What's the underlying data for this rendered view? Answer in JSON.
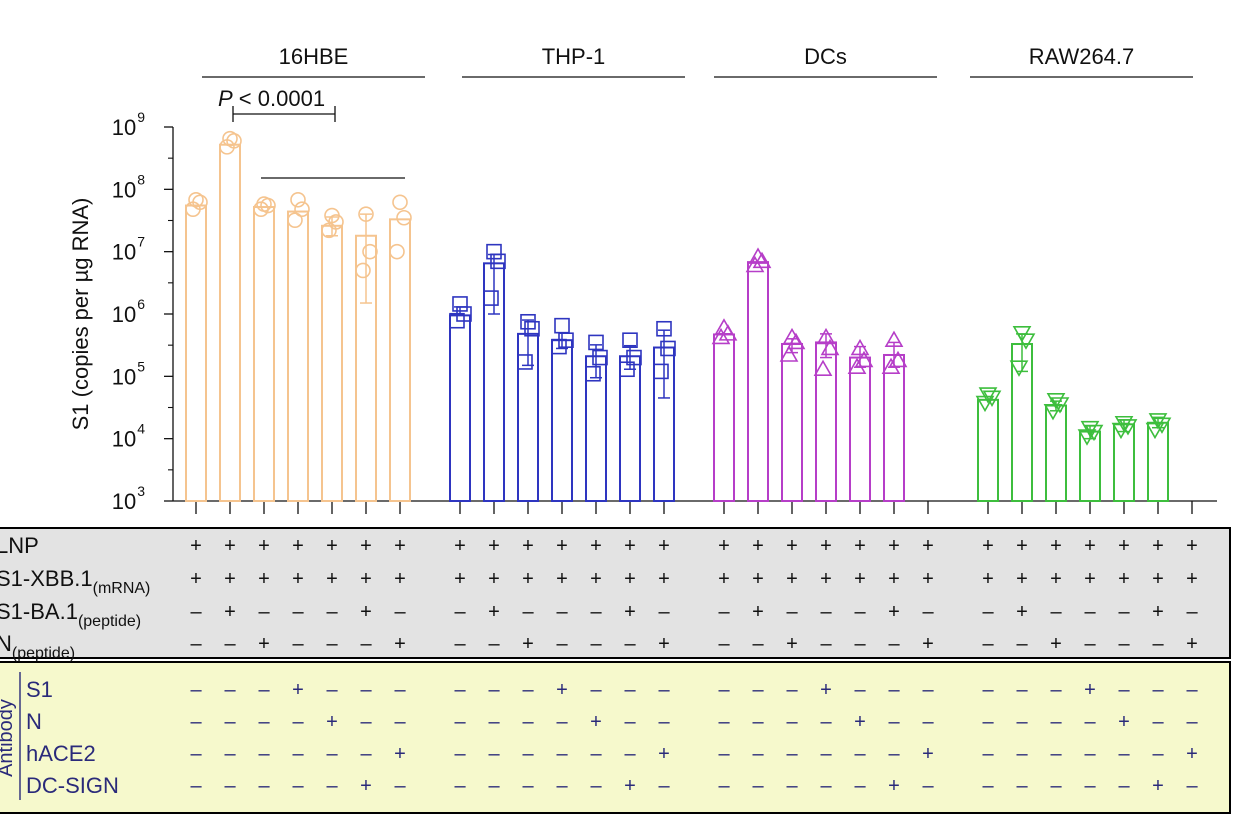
{
  "chart_data": {
    "type": "bar",
    "y_scale": "log10",
    "ylim": [
      1000,
      1000000000
    ],
    "ylabel": "S1 (copies per µg RNA)",
    "y_tick_exponents": [
      "3",
      "4",
      "5",
      "6",
      "7",
      "8",
      "9"
    ],
    "y_tick_base": "10",
    "significance": {
      "p_label": "P",
      "p_text": " < 0.0001",
      "group": "16HBE",
      "from_bar": 1,
      "to_bar": 4,
      "bracket_bars": [
        3,
        7
      ]
    },
    "groups": [
      {
        "name": "16HBE",
        "color": "#f5c48f",
        "marker": "circle",
        "values": [
          55000000,
          520000000,
          52000000,
          44000000,
          26000000,
          18000000,
          33000000
        ],
        "err_low": [
          null,
          null,
          null,
          null,
          18000000,
          1500000,
          null
        ],
        "err_high": [
          null,
          null,
          null,
          null,
          36000000,
          40000000,
          null
        ],
        "points": [
          [
            48000000,
            62000000,
            68000000
          ],
          [
            480000000,
            600000000,
            650000000
          ],
          [
            48000000,
            55000000,
            58000000
          ],
          [
            32000000,
            48000000,
            68000000
          ],
          [
            22000000,
            30000000,
            38000000
          ],
          [
            5000000,
            10000000,
            40000000
          ],
          [
            10000000,
            35000000,
            62000000
          ]
        ]
      },
      {
        "name": "THP-1",
        "color": "#2e35c0",
        "marker": "square",
        "values": [
          950000,
          6500000,
          480000,
          380000,
          210000,
          210000,
          290000
        ],
        "err_low": [
          null,
          1000000,
          150000,
          280000,
          95000,
          130000,
          45000
        ],
        "err_high": [
          1300000,
          9000000,
          800000,
          500000,
          320000,
          310000,
          550000
        ],
        "points": [
          [
            780000,
            1000000,
            1450000
          ],
          [
            1800000,
            7000000,
            10000000
          ],
          [
            170000,
            580000,
            750000
          ],
          [
            300000,
            380000,
            650000
          ],
          [
            110000,
            200000,
            350000
          ],
          [
            130000,
            200000,
            380000
          ],
          [
            120000,
            280000,
            580000
          ]
        ]
      },
      {
        "name": "DCs",
        "color": "#b63ec8",
        "marker": "triangle-up",
        "values": [
          470000,
          6800000,
          330000,
          350000,
          200000,
          220000
        ],
        "err_low": [
          null,
          null,
          240000,
          200000,
          140000,
          140000
        ],
        "err_high": [
          null,
          null,
          400000,
          480000,
          300000,
          350000
        ],
        "points": [
          [
            420000,
            480000,
            600000
          ],
          [
            6000000,
            7000000,
            8200000
          ],
          [
            220000,
            350000,
            420000
          ],
          [
            130000,
            280000,
            420000
          ],
          [
            140000,
            180000,
            280000
          ],
          [
            140000,
            180000,
            380000
          ]
        ]
      },
      {
        "name": "RAW264.7",
        "color": "#3dbe3d",
        "marker": "triangle-down",
        "values": [
          42000,
          330000,
          34000,
          13000,
          17000,
          18000
        ],
        "err_low": [
          null,
          120000,
          28000,
          10000,
          13000,
          15000
        ],
        "err_high": [
          null,
          480000,
          40000,
          16000,
          20000,
          22000
        ],
        "points": [
          [
            38000,
            46000,
            52000
          ],
          [
            140000,
            380000,
            500000
          ],
          [
            28000,
            36000,
            42000
          ],
          [
            11000,
            13000,
            15000
          ],
          [
            14000,
            16000,
            18000
          ],
          [
            14000,
            17000,
            20000
          ]
        ]
      }
    ],
    "condition_groups": [
      {
        "group": "16HBE",
        "bar_slots": 7
      },
      {
        "group": "THP-1",
        "bar_slots": 7
      },
      {
        "group": "DCs",
        "bar_slots": 7
      },
      {
        "group": "RAW264.7",
        "bar_slots": 7
      }
    ]
  },
  "conditions": {
    "row_labels": [
      {
        "main": "LNP",
        "sub": ""
      },
      {
        "main": "S1-XBB.1",
        "sub": "(mRNA)"
      },
      {
        "main": "S1-BA.1",
        "sub": "(peptide)"
      },
      {
        "main": "N",
        "sub": "(peptide)"
      }
    ],
    "pattern": [
      [
        "+",
        "+",
        "+",
        "+",
        "+",
        "+",
        "+"
      ],
      [
        "+",
        "+",
        "+",
        "+",
        "+",
        "+",
        "+"
      ],
      [
        "–",
        "+",
        "–",
        "–",
        "–",
        "+",
        "–"
      ],
      [
        "–",
        "–",
        "+",
        "–",
        "–",
        "–",
        "+"
      ]
    ]
  },
  "antibody": {
    "title": "Antibody",
    "row_labels": [
      "S1",
      "N",
      "hACE2",
      "DC-SIGN"
    ],
    "pattern": [
      [
        "–",
        "–",
        "–",
        "+",
        "–",
        "–",
        "–"
      ],
      [
        "–",
        "–",
        "–",
        "–",
        "+",
        "–",
        "–"
      ],
      [
        "–",
        "–",
        "–",
        "–",
        "–",
        "–",
        "+"
      ],
      [
        "–",
        "–",
        "–",
        "–",
        "–",
        "+",
        "–"
      ]
    ]
  },
  "colors": {
    "axis": "#111111",
    "sign_text": "#2a2a7a",
    "conditions_bg": "#e3e3e3",
    "antibody_bg": "#f6f9cc"
  }
}
